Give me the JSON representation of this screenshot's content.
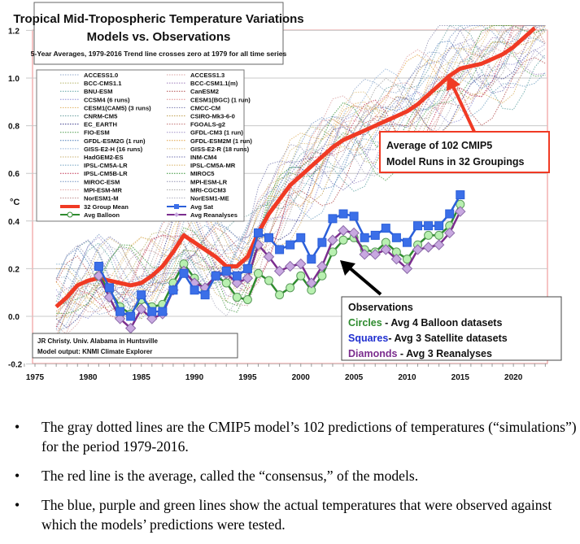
{
  "chart_data": {
    "type": "line",
    "title": "Tropical Mid-Tropospheric Temperature Variations",
    "subtitle": "Models vs. Observations",
    "subtitle2": "5-Year Averages, 1979-2016 Trend line crosses zero at 1979 for all time series",
    "ylabel": "°C",
    "xlabel": "",
    "xlim": [
      1973,
      2024
    ],
    "ylim": [
      -0.2,
      1.2
    ],
    "grid": true,
    "x_ticks": [
      "1975",
      "1980",
      "1985",
      "1990",
      "1995",
      "2000",
      "2005",
      "2010",
      "2015",
      "2020"
    ],
    "y_ticks": [
      "1.2",
      "1.0",
      "0.8",
      "0.6",
      "0.4",
      "0.2",
      "0.0",
      "-0.2"
    ],
    "legend_position": "top-left",
    "model_legend": [
      {
        "name": "ACCESS1.0",
        "color": "#8fa6c9"
      },
      {
        "name": "ACCESS1.3",
        "color": "#d9a0a0"
      },
      {
        "name": "BCC-CMS1.1",
        "color": "#b5b56a"
      },
      {
        "name": "BCC-CSM1.1(m)",
        "color": "#9a7ab8"
      },
      {
        "name": "BNU-ESM",
        "color": "#5ea3a3"
      },
      {
        "name": "CanESM2",
        "color": "#b04a4a"
      },
      {
        "name": "CCSM4 (6 runs)",
        "color": "#8b8bd6"
      },
      {
        "name": "CESM1(BGC) (1 run)",
        "color": "#e08a8a"
      },
      {
        "name": "CESM1(CAM5) (3 runs)",
        "color": "#e0b060"
      },
      {
        "name": "CMCC-CM",
        "color": "#7a7ab0"
      },
      {
        "name": "CNRM-CM5",
        "color": "#6aa0a0"
      },
      {
        "name": "CSIRO-Mk3-6-0",
        "color": "#c0a050"
      },
      {
        "name": "EC_EARTH",
        "color": "#3a3a8a"
      },
      {
        "name": "FGOALS-g2",
        "color": "#c07070"
      },
      {
        "name": "FIO-ESM",
        "color": "#4a9a4a"
      },
      {
        "name": "GFDL-CM3 (1 run)",
        "color": "#a090c8"
      },
      {
        "name": "GFDL-ESM2G (1 run)",
        "color": "#4a7ab8"
      },
      {
        "name": "GFDL-ESM2M (1 run)",
        "color": "#e0a040"
      },
      {
        "name": "GISS-E2-H (16 runs)",
        "color": "#90b0d8"
      },
      {
        "name": "GISS-E2-R (18 runs)",
        "color": "#e0c080"
      },
      {
        "name": "HadGEM2-ES",
        "color": "#c8b070"
      },
      {
        "name": "INM-CM4",
        "color": "#7070b0"
      },
      {
        "name": "IPSL-CM5A-LR",
        "color": "#70a0c0"
      },
      {
        "name": "IPSL-CM5A-MR",
        "color": "#d8b060"
      },
      {
        "name": "IPSL-CM5B-LR",
        "color": "#c03050"
      },
      {
        "name": "MIROC5",
        "color": "#309030"
      },
      {
        "name": "MIROC-ESM",
        "color": "#7090c0"
      },
      {
        "name": "MPI-ESM-LR",
        "color": "#9090b0"
      },
      {
        "name": "MPI-ESM-MR",
        "color": "#e0a0a0"
      },
      {
        "name": "MRI-CGCM3",
        "color": "#a0a0a0"
      },
      {
        "name": "NorESM1-M",
        "color": "#c09090"
      },
      {
        "name": "NorESM1-ME",
        "color": "#b0b0c0"
      }
    ],
    "series": [
      {
        "name": "32 Group Mean",
        "color": "#f03a24",
        "marker": "none",
        "x": [
          1977,
          1978,
          1979,
          1980,
          1981,
          1982,
          1983,
          1984,
          1985,
          1986,
          1987,
          1988,
          1989,
          1990,
          1991,
          1992,
          1993,
          1994,
          1995,
          1996,
          1997,
          1998,
          1999,
          2000,
          2001,
          2002,
          2003,
          2004,
          2005,
          2006,
          2007,
          2008,
          2009,
          2010,
          2011,
          2012,
          2013,
          2014,
          2015,
          2016,
          2017,
          2018,
          2019,
          2020,
          2021,
          2022
        ],
        "y": [
          0.04,
          0.08,
          0.13,
          0.15,
          0.16,
          0.15,
          0.14,
          0.13,
          0.14,
          0.17,
          0.21,
          0.27,
          0.34,
          0.31,
          0.28,
          0.25,
          0.21,
          0.21,
          0.25,
          0.35,
          0.43,
          0.49,
          0.55,
          0.59,
          0.63,
          0.67,
          0.71,
          0.74,
          0.76,
          0.78,
          0.8,
          0.82,
          0.84,
          0.86,
          0.89,
          0.93,
          0.97,
          1.01,
          1.04,
          1.05,
          1.06,
          1.08,
          1.1,
          1.13,
          1.17,
          1.21
        ]
      },
      {
        "name": "Avg Sat",
        "color": "#2b5fd9",
        "marker": "square",
        "x": [
          1981,
          1982,
          1983,
          1984,
          1985,
          1986,
          1987,
          1988,
          1989,
          1990,
          1991,
          1992,
          1993,
          1994,
          1995,
          1996,
          1997,
          1998,
          1999,
          2000,
          2001,
          2002,
          2003,
          2004,
          2005,
          2006,
          2007,
          2008,
          2009,
          2010,
          2011,
          2012,
          2013,
          2014,
          2015
        ],
        "y": [
          0.21,
          0.12,
          0.02,
          0.0,
          0.09,
          0.02,
          0.02,
          0.11,
          0.18,
          0.11,
          0.09,
          0.17,
          0.19,
          0.17,
          0.2,
          0.35,
          0.33,
          0.28,
          0.3,
          0.33,
          0.24,
          0.31,
          0.41,
          0.43,
          0.42,
          0.33,
          0.34,
          0.37,
          0.33,
          0.31,
          0.38,
          0.38,
          0.38,
          0.43,
          0.51
        ]
      },
      {
        "name": "Avg Balloon",
        "color": "#2e8b2e",
        "marker": "circle",
        "x": [
          1981,
          1982,
          1983,
          1984,
          1985,
          1986,
          1987,
          1988,
          1989,
          1990,
          1991,
          1992,
          1993,
          1994,
          1995,
          1996,
          1997,
          1998,
          1999,
          2000,
          2001,
          2002,
          2003,
          2004,
          2005,
          2006,
          2007,
          2008,
          2009,
          2010,
          2011,
          2012,
          2013,
          2014,
          2015
        ],
        "y": [
          0.17,
          0.11,
          0.04,
          0.01,
          0.07,
          0.04,
          0.05,
          0.14,
          0.22,
          0.16,
          0.11,
          0.17,
          0.14,
          0.08,
          0.07,
          0.18,
          0.15,
          0.09,
          0.12,
          0.17,
          0.11,
          0.17,
          0.27,
          0.32,
          0.33,
          0.28,
          0.27,
          0.31,
          0.27,
          0.24,
          0.3,
          0.34,
          0.34,
          0.38,
          0.47
        ]
      },
      {
        "name": "Avg Reanalyses",
        "color": "#7b2d8e",
        "marker": "diamond",
        "x": [
          1981,
          1982,
          1983,
          1984,
          1985,
          1986,
          1987,
          1988,
          1989,
          1990,
          1991,
          1992,
          1993,
          1994,
          1995,
          1996,
          1997,
          1998,
          1999,
          2000,
          2001,
          2002,
          2003,
          2004,
          2005,
          2006,
          2007,
          2008,
          2009,
          2010,
          2011,
          2012,
          2013,
          2014,
          2015
        ],
        "y": [
          0.17,
          0.08,
          -0.01,
          -0.05,
          0.03,
          -0.01,
          0.01,
          0.11,
          0.19,
          0.14,
          0.12,
          0.17,
          0.18,
          0.14,
          0.16,
          0.3,
          0.25,
          0.19,
          0.21,
          0.22,
          0.14,
          0.21,
          0.32,
          0.36,
          0.35,
          0.26,
          0.26,
          0.28,
          0.24,
          0.2,
          0.28,
          0.29,
          0.3,
          0.35,
          0.44
        ]
      }
    ],
    "annotations": {
      "models_callout": [
        "Average of 102 CMIP5",
        "Model Runs in 32 Groupings"
      ],
      "observations_title": "Observations",
      "obs_lines": [
        {
          "key": "Circles",
          "rest": " - Avg 4 Balloon datasets",
          "color": "#2e8b2e"
        },
        {
          "key": "Squares",
          "rest": "- Avg 3 Satellite datasets",
          "color": "#1f2fd0"
        },
        {
          "key": "Diamonds",
          "rest": " - Avg 3 Reanalyses",
          "color": "#7b2d8e"
        }
      ],
      "credit": [
        "JR Christy. Univ. Alabama in Huntsville",
        "Model output: KNMI Climate Explorer"
      ]
    }
  },
  "bullets": [
    "The gray dotted lines are the CMIP5 model’s 102 predictions of temperatures (“simulations”) for the period 1979-2016.",
    "The red line is the average, called the “consensus,” of the models.",
    "The blue, purple and green lines show the actual temperatures that were observed against which the models’ predictions were tested."
  ],
  "bullet_symbol": "•"
}
